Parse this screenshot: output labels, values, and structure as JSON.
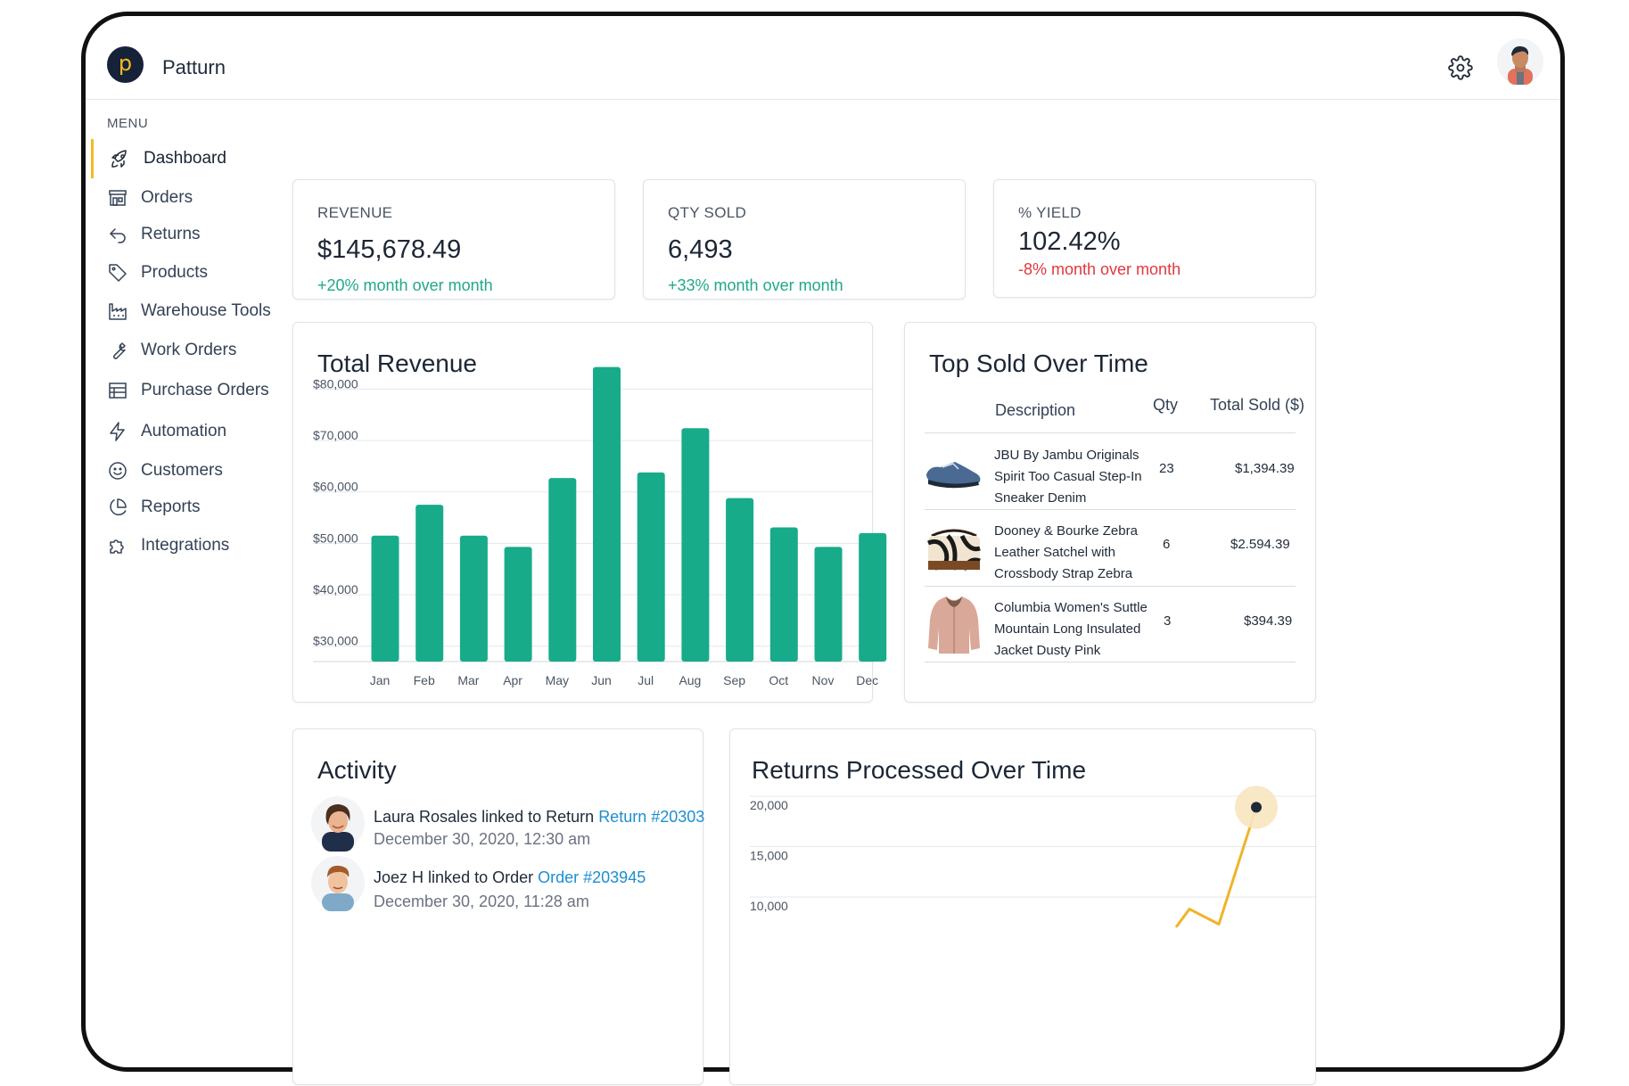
{
  "brand": {
    "logo_letter": "p",
    "name": "Patturn"
  },
  "header": {
    "settings_icon": "gear-icon",
    "avatar_icon": "user-avatar"
  },
  "sidebar": {
    "menu_title": "MENU",
    "items": [
      {
        "label": "Dashboard",
        "icon": "rocket-icon",
        "active": true
      },
      {
        "label": "Orders",
        "icon": "storefront-icon"
      },
      {
        "label": "Returns",
        "icon": "return-arrow-icon"
      },
      {
        "label": "Products",
        "icon": "tag-icon"
      },
      {
        "label": "Warehouse Tools",
        "icon": "factory-icon"
      },
      {
        "label": "Work Orders",
        "icon": "wrench-icon"
      },
      {
        "label": "Purchase Orders",
        "icon": "table-icon"
      },
      {
        "label": "Automation",
        "icon": "lightning-icon"
      },
      {
        "label": "Customers",
        "icon": "smiley-icon"
      },
      {
        "label": "Reports",
        "icon": "pie-chart-icon"
      },
      {
        "label": "Integrations",
        "icon": "puzzle-icon"
      }
    ]
  },
  "stats": [
    {
      "label": "REVENUE",
      "value": "$145,678.49",
      "change": "+20% month over month",
      "trend": "up"
    },
    {
      "label": "QTY SOLD",
      "value": "6,493",
      "change": "+33% month over month",
      "trend": "up"
    },
    {
      "label": "% YIELD",
      "value": "102.42%",
      "change": "-8% month over month",
      "trend": "down"
    }
  ],
  "revenue_chart": {
    "title": "Total Revenue",
    "chart_data": {
      "type": "bar",
      "title": "Total Revenue",
      "categories": [
        "Jan",
        "Feb",
        "Mar",
        "Apr",
        "May",
        "Jun",
        "Jul",
        "Aug",
        "Sep",
        "Oct",
        "Nov",
        "Dec"
      ],
      "values": [
        51500,
        57500,
        51500,
        49300,
        62700,
        84300,
        63800,
        72400,
        58800,
        53100,
        49300,
        52000
      ],
      "y_ticks": [
        "$30,000",
        "$40,000",
        "$50,000",
        "$60,000",
        "$70,000",
        "$80,000"
      ],
      "y_tick_values": [
        30000,
        40000,
        50000,
        60000,
        70000,
        80000
      ],
      "ylim": [
        27000,
        82500
      ],
      "color": "#17ab8a",
      "grid": true
    }
  },
  "top_sold": {
    "title": "Top Sold Over Time",
    "columns": {
      "description": "Description",
      "qty": "Qty",
      "total": "Total Sold ($)"
    },
    "rows": [
      {
        "description": "JBU By Jambu Originals Spirit Too Casual Step-In Sneaker Denim",
        "qty": "23",
        "total": "$1,394.39",
        "image": "sneaker-image"
      },
      {
        "description": "Dooney & Bourke Zebra Leather Satchel with Crossbody Strap Zebra",
        "qty": "6",
        "total": "$2.594.39",
        "image": "handbag-image"
      },
      {
        "description": "Columbia Women's Suttle Mountain Long Insulated Jacket Dusty Pink",
        "qty": "3",
        "total": "$394.39",
        "image": "jacket-image"
      }
    ]
  },
  "activity": {
    "title": "Activity",
    "items": [
      {
        "actor": "Laura Rosales",
        "verb": "linked to Return",
        "link": "Return #20303",
        "time": "December 30, 2020, 12:30 am"
      },
      {
        "actor": "Joez H",
        "verb": "linked to Order",
        "link": "Order #203945",
        "time": "December 30, 2020, 11:28 am"
      }
    ]
  },
  "returns_chart": {
    "title": "Returns Processed Over Time",
    "chart_data": {
      "type": "line",
      "title": "Returns Processed Over Time",
      "y_ticks": [
        "10,000",
        "15,000",
        "20,000"
      ],
      "y_tick_values": [
        10000,
        15000,
        20000
      ],
      "ylim": [
        7000,
        21500
      ],
      "series": [
        {
          "values": [
            7000,
            8800,
            7300,
            18900
          ]
        }
      ],
      "color": "#f0b429",
      "highlight_point": 3
    }
  }
}
